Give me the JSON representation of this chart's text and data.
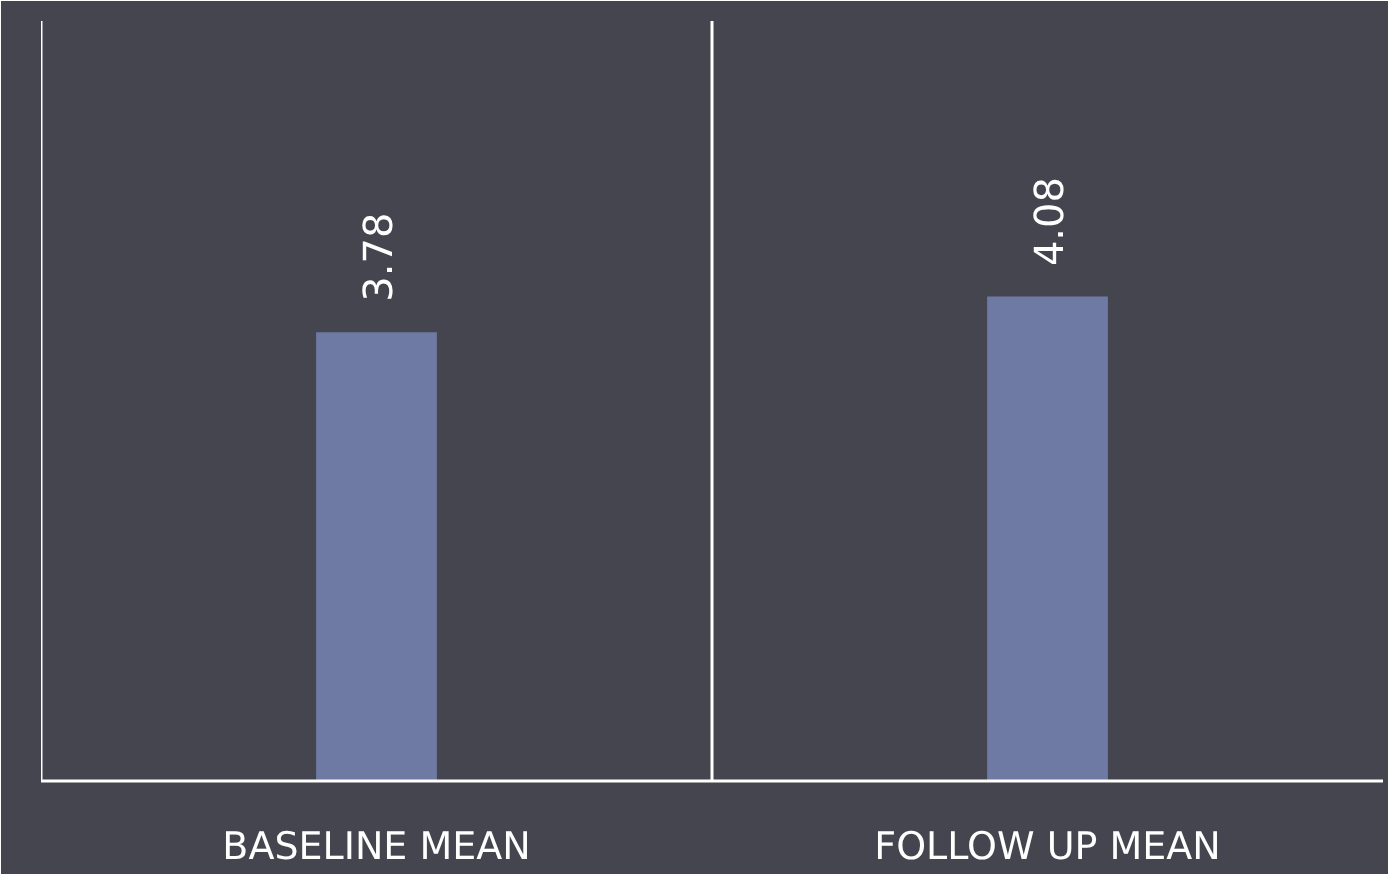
{
  "chart_data": {
    "type": "bar",
    "categories": [
      "BASELINE MEAN",
      "FOLLOW UP MEAN"
    ],
    "values": [
      3.78,
      4.08
    ],
    "color": "#6e7aa3",
    "data_labels": true,
    "ylim": [
      0,
      6.4
    ]
  }
}
